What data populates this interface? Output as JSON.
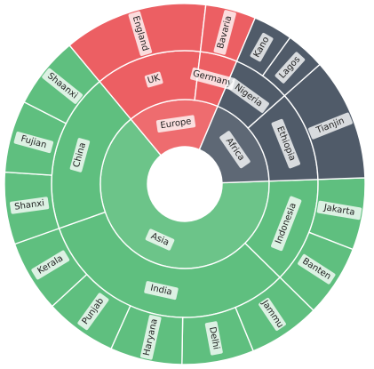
{
  "chart_data": {
    "type": "sunburst",
    "title": "",
    "rings": [
      "continent",
      "country",
      "city"
    ],
    "colors": {
      "Asia": "#5fbf7f",
      "Africa": "#505b69",
      "Europe": "#ec5f63",
      "stroke": "#ffffff"
    },
    "children": [
      {
        "name": "Asia",
        "children": [
          {
            "name": "Indonesia",
            "children": [
              {
                "name": "Jakarta",
                "value": 1
              },
              {
                "name": "Banten",
                "value": 1
              }
            ]
          },
          {
            "name": "India",
            "children": [
              {
                "name": "Jammu",
                "value": 1
              },
              {
                "name": "Delhi",
                "value": 1
              },
              {
                "name": "Haryana",
                "value": 1
              },
              {
                "name": "Punjab",
                "value": 1
              },
              {
                "name": "Kerala",
                "value": 1
              }
            ]
          },
          {
            "name": "China",
            "children": [
              {
                "name": "Shanxi",
                "value": 1
              },
              {
                "name": "Fujian",
                "value": 1
              },
              {
                "name": "Shaanxi",
                "value": 1
              }
            ]
          }
        ]
      },
      {
        "name": "Europe",
        "children": [
          {
            "name": "UK",
            "children": [
              {
                "name": "England",
                "value": 2
              }
            ]
          },
          {
            "name": "Germany",
            "children": [
              {
                "name": "Bavaria",
                "value": 0.7
              }
            ]
          }
        ]
      },
      {
        "name": "Africa",
        "children": [
          {
            "name": "Nigeria",
            "children": [
              {
                "name": "Kano",
                "value": 0.55
              },
              {
                "name": "Lagos",
                "value": 0.55
              }
            ]
          },
          {
            "name": "Ethiopia",
            "children": [
              {
                "name": "Tianjin",
                "value": 1.7
              }
            ]
          }
        ]
      }
    ]
  }
}
